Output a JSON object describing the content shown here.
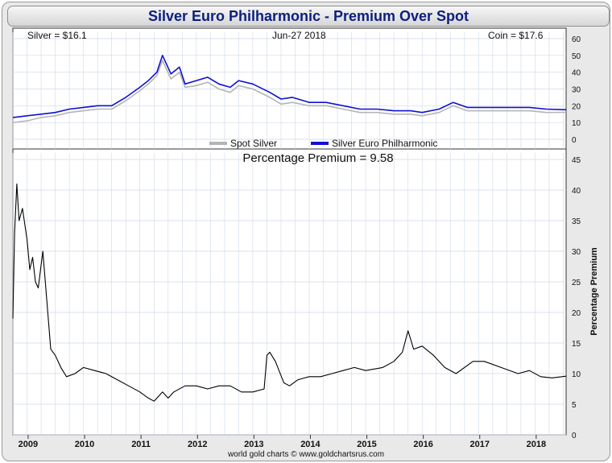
{
  "title": "Silver Euro Philharmonic - Premium Over Spot",
  "header": {
    "silver": "Silver = $16.1",
    "date": "Jun-27  2018",
    "coin": "Coin = $17.6"
  },
  "legend": {
    "spot": "Spot Silver",
    "coin": "Silver Euro Philharmonic"
  },
  "premium_label": "Percentage Premium = 9.58",
  "ylabel_bottom": "Percentage Premium",
  "credit": "world gold charts © www.goldchartsrus.com",
  "colors": {
    "spot": "#b5b5b5",
    "coin": "#1010d0",
    "premium": "#000000",
    "grid": "#cfd8e6"
  },
  "chart_data": [
    {
      "type": "line",
      "title": "",
      "ylim": [
        0,
        60
      ],
      "yticks": [
        0,
        10,
        20,
        30,
        40,
        50,
        60
      ],
      "xlim": [
        2008.75,
        2018.55
      ],
      "xticks": [
        "2009",
        "2010",
        "2011",
        "2012",
        "2013",
        "2014",
        "2015",
        "2016",
        "2017",
        "2018"
      ],
      "grid": true,
      "legend_position": "bottom-center",
      "series": [
        {
          "name": "Spot Silver",
          "x": [
            2008.75,
            2009.0,
            2009.25,
            2009.5,
            2009.75,
            2010.0,
            2010.25,
            2010.5,
            2010.75,
            2011.0,
            2011.15,
            2011.3,
            2011.4,
            2011.55,
            2011.7,
            2011.8,
            2012.0,
            2012.2,
            2012.4,
            2012.6,
            2012.75,
            2013.0,
            2013.3,
            2013.5,
            2013.7,
            2014.0,
            2014.3,
            2014.6,
            2014.9,
            2015.2,
            2015.5,
            2015.8,
            2016.0,
            2016.3,
            2016.55,
            2016.8,
            2017.0,
            2017.3,
            2017.6,
            2017.9,
            2018.2,
            2018.55
          ],
          "y": [
            10,
            11,
            13,
            14,
            16,
            17,
            18,
            18,
            23,
            29,
            33,
            38,
            47,
            36,
            40,
            31,
            32,
            34,
            30,
            28,
            32,
            30,
            25,
            21,
            22,
            20,
            20,
            18,
            16,
            16,
            15,
            15,
            14,
            16,
            20,
            17,
            17,
            17,
            17,
            17,
            16,
            16.1
          ]
        },
        {
          "name": "Silver Euro Philharmonic",
          "x": [
            2008.75,
            2009.0,
            2009.25,
            2009.5,
            2009.75,
            2010.0,
            2010.25,
            2010.5,
            2010.75,
            2011.0,
            2011.15,
            2011.3,
            2011.4,
            2011.55,
            2011.7,
            2011.8,
            2012.0,
            2012.2,
            2012.4,
            2012.6,
            2012.75,
            2013.0,
            2013.3,
            2013.5,
            2013.7,
            2014.0,
            2014.3,
            2014.6,
            2014.9,
            2015.2,
            2015.5,
            2015.8,
            2016.0,
            2016.3,
            2016.55,
            2016.8,
            2017.0,
            2017.3,
            2017.6,
            2017.9,
            2018.2,
            2018.55
          ],
          "y": [
            13,
            14,
            15,
            16,
            18,
            19,
            20,
            20,
            25,
            31,
            35,
            40,
            50,
            39,
            43,
            33,
            35,
            37,
            33,
            31,
            35,
            33,
            28,
            24,
            25,
            22,
            22,
            20,
            18,
            18,
            17,
            17,
            16,
            18,
            22,
            19,
            19,
            19,
            19,
            19,
            18,
            17.6
          ]
        }
      ]
    },
    {
      "type": "line",
      "title": "",
      "ylabel": "Percentage Premium",
      "ylim": [
        0,
        45
      ],
      "yticks": [
        0,
        5,
        10,
        15,
        20,
        25,
        30,
        35,
        40,
        45
      ],
      "xlim": [
        2008.75,
        2018.55
      ],
      "xticks": [
        "2009",
        "2010",
        "2011",
        "2012",
        "2013",
        "2014",
        "2015",
        "2016",
        "2017",
        "2018"
      ],
      "grid": true,
      "series": [
        {
          "name": "",
          "x": [
            2008.75,
            2008.78,
            2008.82,
            2008.86,
            2008.92,
            2009.0,
            2009.05,
            2009.1,
            2009.15,
            2009.2,
            2009.28,
            2009.35,
            2009.42,
            2009.5,
            2009.6,
            2009.7,
            2009.85,
            2010.0,
            2010.2,
            2010.4,
            2010.6,
            2010.8,
            2011.0,
            2011.15,
            2011.25,
            2011.4,
            2011.5,
            2011.6,
            2011.8,
            2012.0,
            2012.2,
            2012.4,
            2012.6,
            2012.8,
            2013.0,
            2013.2,
            2013.25,
            2013.3,
            2013.4,
            2013.55,
            2013.65,
            2013.8,
            2014.0,
            2014.2,
            2014.4,
            2014.6,
            2014.8,
            2015.0,
            2015.3,
            2015.5,
            2015.65,
            2015.75,
            2015.85,
            2016.0,
            2016.2,
            2016.4,
            2016.6,
            2016.9,
            2017.1,
            2017.4,
            2017.7,
            2017.9,
            2018.1,
            2018.3,
            2018.55
          ],
          "y": [
            19,
            33,
            41,
            35,
            37,
            32,
            27,
            29,
            25,
            24,
            30,
            22,
            14,
            13,
            11,
            9.5,
            10,
            11,
            10.5,
            10,
            9,
            8,
            7,
            6,
            5.5,
            7,
            6,
            7,
            8,
            8,
            7.5,
            8,
            8,
            7,
            7,
            7.5,
            13,
            13.5,
            12,
            8.5,
            8,
            9,
            9.5,
            9.5,
            10,
            10.5,
            11,
            10.5,
            11,
            12,
            13.5,
            17,
            14,
            14.5,
            13,
            11,
            10,
            12,
            12,
            11,
            10,
            10.5,
            9.5,
            9.3,
            9.58
          ]
        }
      ]
    }
  ]
}
